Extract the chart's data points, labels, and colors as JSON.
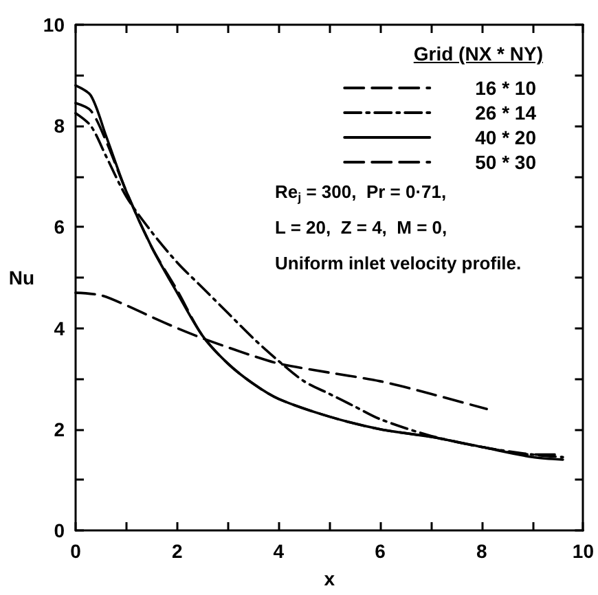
{
  "chart_data": {
    "type": "line",
    "xlabel": "x",
    "ylabel": "Nu",
    "legend_title": "Grid (NX * NY)",
    "xlim": [
      0,
      10
    ],
    "xticks": [
      0,
      {
        "value": 1,
        "label": null
      },
      2,
      {
        "value": 3,
        "label": null
      },
      4,
      {
        "value": 5,
        "label": null
      },
      6,
      {
        "value": 7,
        "label": null
      },
      8,
      {
        "value": 9,
        "label": null
      },
      10
    ],
    "ylim": [
      0,
      10
    ],
    "yticks": [
      0,
      {
        "value": 1,
        "label": null
      },
      2,
      {
        "value": 3,
        "label": null
      },
      4,
      {
        "value": 5,
        "label": null
      },
      6,
      {
        "value": 7,
        "label": null
      },
      8,
      {
        "value": 9,
        "label": null
      },
      10
    ],
    "grid": false,
    "legend": "top right",
    "marker": "none",
    "annotations": [
      "Re$_{j}$ = 300,  Pr = 0·71,",
      "L = 20,  Z = 4,  M = 0,",
      "Uniform inlet velocity profile."
    ],
    "series": [
      {
        "name": "16 * 10",
        "color": "#000000",
        "line_style": "dashed",
        "x": [
          0,
          0.5,
          1,
          1.5,
          2,
          2.5,
          3,
          3.5,
          4,
          5,
          6,
          7,
          8.1
        ],
        "values": [
          4.7,
          4.65,
          4.45,
          4.22,
          4.0,
          3.8,
          3.62,
          3.45,
          3.3,
          3.12,
          2.95,
          2.7,
          2.4
        ]
      },
      {
        "name": "26 * 14",
        "color": "#000000",
        "line_style": "dashdot",
        "x": [
          0,
          0.3,
          0.6,
          1,
          1.5,
          2,
          2.5,
          3,
          3.5,
          4,
          4.5,
          5,
          5.5,
          6,
          7,
          8,
          9,
          9.6
        ],
        "values": [
          8.25,
          8.0,
          7.4,
          6.6,
          5.9,
          5.3,
          4.8,
          4.3,
          3.8,
          3.35,
          2.95,
          2.7,
          2.45,
          2.2,
          1.87,
          1.65,
          1.5,
          1.45
        ]
      },
      {
        "name": "40 * 20",
        "color": "#000000",
        "line_style": "solid",
        "x": [
          0,
          0.3,
          0.6,
          1,
          1.5,
          2,
          2.5,
          3,
          3.5,
          4,
          5,
          6,
          7,
          8,
          9,
          9.6
        ],
        "values": [
          8.8,
          8.6,
          7.8,
          6.7,
          5.6,
          4.7,
          3.85,
          3.3,
          2.9,
          2.6,
          2.25,
          2.0,
          1.85,
          1.65,
          1.45,
          1.4
        ]
      },
      {
        "name": "50 * 30",
        "color": "#000000",
        "line_style": "dashed",
        "x": [
          0,
          0.3,
          0.6,
          1,
          1.5,
          2,
          2.5,
          3,
          3.5,
          4,
          5,
          6,
          7,
          8,
          9,
          9.6
        ],
        "values": [
          8.45,
          8.3,
          7.7,
          6.7,
          5.6,
          4.75,
          3.85,
          3.3,
          2.9,
          2.6,
          2.25,
          2.0,
          1.85,
          1.65,
          1.5,
          1.5
        ]
      }
    ]
  }
}
